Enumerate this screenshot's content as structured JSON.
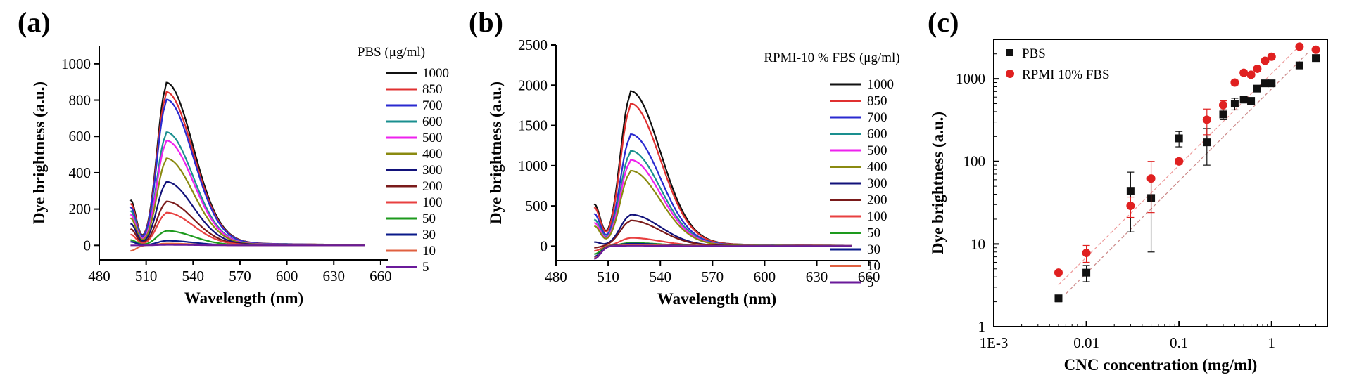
{
  "panels": {
    "a": {
      "letter": "(a)"
    },
    "b": {
      "letter": "(b)"
    },
    "c": {
      "letter": "(c)"
    }
  },
  "legend_labels": [
    "1000",
    "850",
    "700",
    "600",
    "500",
    "400",
    "300",
    "200",
    "100",
    "50",
    "30",
    "10",
    "5"
  ],
  "colors": {
    "c1000": "#111111",
    "c850": "#e03030",
    "c700": "#2a2ad0",
    "c600": "#1a8f8f",
    "c500": "#ee22ee",
    "c400": "#8a8a10",
    "c300": "#12127a",
    "c200": "#7a1a1a",
    "c100": "#e84040",
    "c50": "#1d9a1d",
    "c30": "#0a1a8a",
    "c10": "#e06040",
    "c5": "#6a1a9a",
    "pbs": "#111111",
    "rpmi": "#e02020"
  },
  "chart_data": [
    {
      "type": "line",
      "panel": "(a)",
      "legend_title": "PBS (μg/ml)",
      "xlabel": "Wavelength (nm)",
      "ylabel": "Dye brightness (a.u.)",
      "xlim": [
        480,
        665
      ],
      "ylim": [
        -80,
        1100
      ],
      "xticks": [
        480,
        510,
        540,
        570,
        600,
        630,
        660
      ],
      "yticks": [
        0,
        200,
        400,
        600,
        800,
        1000
      ],
      "x_range": [
        500,
        650
      ],
      "series": [
        {
          "name": "1000",
          "peak": 870,
          "start": 250
        },
        {
          "name": "850",
          "peak": 820,
          "start": 230
        },
        {
          "name": "700",
          "peak": 780,
          "start": 210
        },
        {
          "name": "600",
          "peak": 605,
          "start": 190
        },
        {
          "name": "500",
          "peak": 560,
          "start": 170
        },
        {
          "name": "400",
          "peak": 465,
          "start": 150
        },
        {
          "name": "300",
          "peak": 340,
          "start": 120
        },
        {
          "name": "200",
          "peak": 235,
          "start": 90
        },
        {
          "name": "100",
          "peak": 175,
          "start": 60
        },
        {
          "name": "50",
          "peak": 78,
          "start": 30
        },
        {
          "name": "30",
          "peak": 25,
          "start": 20
        },
        {
          "name": "10",
          "peak": 10,
          "start": -30
        },
        {
          "name": "5",
          "peak": 3,
          "start": 0
        }
      ]
    },
    {
      "type": "line",
      "panel": "(b)",
      "legend_title": "RPMI-10 % FBS (μg/ml)",
      "xlabel": "Wavelength (nm)",
      "ylabel": "Dye brightness (a.u.)",
      "xlim": [
        480,
        665
      ],
      "ylim": [
        -180,
        2500
      ],
      "xticks": [
        480,
        510,
        540,
        570,
        600,
        630,
        660
      ],
      "yticks": [
        0,
        500,
        1000,
        1500,
        2000,
        2500
      ],
      "x_range": [
        502,
        650
      ],
      "series": [
        {
          "name": "1000",
          "peak": 1870,
          "start": 520
        },
        {
          "name": "850",
          "peak": 1720,
          "start": 480
        },
        {
          "name": "700",
          "peak": 1350,
          "start": 400
        },
        {
          "name": "600",
          "peak": 1150,
          "start": 330
        },
        {
          "name": "500",
          "peak": 1040,
          "start": 290
        },
        {
          "name": "400",
          "peak": 910,
          "start": 250
        },
        {
          "name": "300",
          "peak": 380,
          "start": 50
        },
        {
          "name": "200",
          "peak": 310,
          "start": -20
        },
        {
          "name": "100",
          "peak": 100,
          "start": -60
        },
        {
          "name": "50",
          "peak": 40,
          "start": -100
        },
        {
          "name": "30",
          "peak": 30,
          "start": -130
        },
        {
          "name": "10",
          "peak": 15,
          "start": -150
        },
        {
          "name": "5",
          "peak": 5,
          "start": -160
        }
      ]
    },
    {
      "type": "scatter",
      "panel": "(c)",
      "xlabel": "CNC concentration (mg/ml)",
      "ylabel": "Dye brightness (a.u.)",
      "xscale": "log",
      "yscale": "log",
      "xlim": [
        0.001,
        4
      ],
      "ylim": [
        1,
        3000
      ],
      "xticks": [
        0.001,
        0.01,
        0.1,
        1
      ],
      "xticklabels": [
        "1E-3",
        "0.01",
        "0.1",
        "1"
      ],
      "yticks": [
        1,
        10,
        100,
        1000
      ],
      "yticklabels": [
        "1",
        "10",
        "100",
        "1000"
      ],
      "series": [
        {
          "name": "PBS",
          "marker": "square",
          "x": [
            0.005,
            0.01,
            0.03,
            0.05,
            0.1,
            0.2,
            0.3,
            0.4,
            0.5,
            0.6,
            0.7,
            0.85,
            1.0,
            2.0,
            3.0
          ],
          "y": [
            2.2,
            4.5,
            44,
            36,
            190,
            170,
            370,
            500,
            560,
            540,
            760,
            880,
            880,
            1450,
            1780
          ],
          "err": [
            0.2,
            1.0,
            30,
            28,
            40,
            80,
            50,
            80,
            40,
            40,
            60,
            60,
            60,
            80,
            120
          ]
        },
        {
          "name": "RPMI 10% FBS",
          "marker": "circle",
          "x": [
            0.005,
            0.01,
            0.03,
            0.05,
            0.1,
            0.2,
            0.3,
            0.4,
            0.5,
            0.6,
            0.7,
            0.85,
            1.0,
            2.0,
            3.0
          ],
          "y": [
            4.5,
            7.8,
            29,
            62,
            100,
            320,
            480,
            900,
            1180,
            1120,
            1320,
            1650,
            1850,
            2450,
            2250
          ],
          "err": [
            0.3,
            1.8,
            8,
            38,
            8,
            110,
            60,
            60,
            80,
            80,
            80,
            80,
            80,
            100,
            100
          ]
        }
      ]
    }
  ]
}
